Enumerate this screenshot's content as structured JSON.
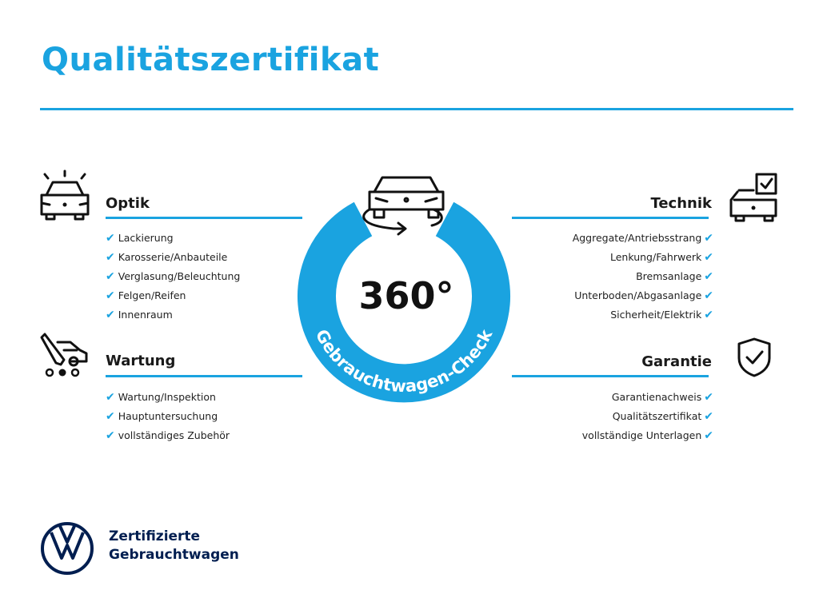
{
  "title": "Qualitätszertifikat",
  "accent_color": "#1aa3e0",
  "center": {
    "label": "360°",
    "ring_text": "Gebrauchtwagen-Check",
    "icon": "rotating-car-icon"
  },
  "sections": {
    "optik": {
      "title": "Optik",
      "icon": "car-lights-icon",
      "items": [
        "Lackierung",
        "Karosserie/Anbauteile",
        "Verglasung/Beleuchtung",
        "Felgen/Reifen",
        "Innenraum"
      ]
    },
    "wartung": {
      "title": "Wartung",
      "icon": "service-tools-icon",
      "items": [
        "Wartung/Inspektion",
        "Hauptuntersuchung",
        "vollständiges Zubehör"
      ]
    },
    "technik": {
      "title": "Technik",
      "icon": "car-checkbox-icon",
      "items": [
        "Aggregate/Antriebsstrang",
        "Lenkung/Fahrwerk",
        "Bremsanlage",
        "Unterboden/Abgasanlage",
        "Sicherheit/Elektrik"
      ]
    },
    "garantie": {
      "title": "Garantie",
      "icon": "shield-check-icon",
      "items": [
        "Garantienachweis",
        "Qualitätszertifikat",
        "vollständige Unterlagen"
      ]
    }
  },
  "check_mark": "✔",
  "brand": {
    "line1": "Zertifizierte",
    "line2": "Gebrauchtwagen",
    "logo": "VW",
    "logo_color": "#001e50"
  }
}
